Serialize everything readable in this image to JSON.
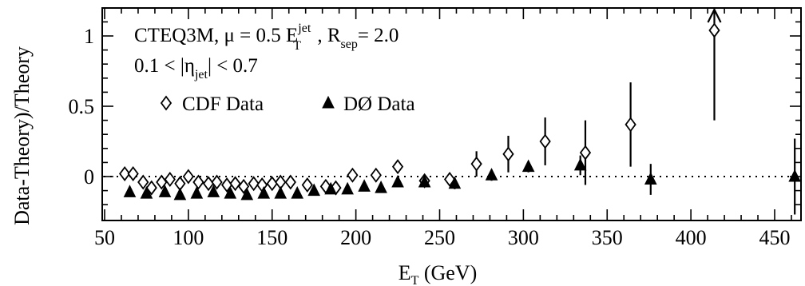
{
  "chart_data": {
    "type": "scatter",
    "title": "",
    "xlabel": {
      "main": "E",
      "sub": "T",
      "rest": " (GeV)"
    },
    "ylabel": "Data-Theory)/Theory",
    "xlim": [
      50,
      470
    ],
    "ylim": [
      -0.3,
      1.2
    ],
    "x_ticks": [
      "50",
      "100",
      "150",
      "200",
      "250",
      "300",
      "350",
      "400",
      "450"
    ],
    "x_tick_values": [
      50,
      100,
      150,
      200,
      250,
      300,
      350,
      400,
      450
    ],
    "y_ticks": [
      "0",
      "0.5",
      "1"
    ],
    "y_tick_values": [
      0,
      0.5,
      1
    ],
    "grid": false,
    "legend_position": "upper-left inside",
    "zero_line": 0,
    "annotations": {
      "line1": {
        "pdf": "CTEQ3M, ",
        "mu": "μ = 0.5 E",
        "mu_sup": "jet",
        "mu_sub": "T",
        "rsep": " , R",
        "rsep_sub": "sep",
        "rsep_val": "= 2.0"
      },
      "line2": {
        "pre": "0.1 < |η",
        "sub": "jet",
        "post": "| < 0.7"
      }
    },
    "series": [
      {
        "name": "CDF Data",
        "marker": "open-diamond",
        "color": "#000000",
        "points": [
          {
            "x": 62,
            "y": 0.02
          },
          {
            "x": 67,
            "y": 0.02
          },
          {
            "x": 73,
            "y": -0.04
          },
          {
            "x": 78,
            "y": -0.08
          },
          {
            "x": 84,
            "y": -0.04
          },
          {
            "x": 89,
            "y": -0.02
          },
          {
            "x": 95,
            "y": -0.05
          },
          {
            "x": 100,
            "y": 0.0
          },
          {
            "x": 106,
            "y": -0.04
          },
          {
            "x": 112,
            "y": -0.05
          },
          {
            "x": 117,
            "y": -0.04
          },
          {
            "x": 123,
            "y": -0.06
          },
          {
            "x": 128,
            "y": -0.05
          },
          {
            "x": 133,
            "y": -0.07
          },
          {
            "x": 139,
            "y": -0.05
          },
          {
            "x": 144,
            "y": -0.06
          },
          {
            "x": 150,
            "y": -0.05
          },
          {
            "x": 155,
            "y": -0.04
          },
          {
            "x": 161,
            "y": -0.04
          },
          {
            "x": 171,
            "y": -0.06
          },
          {
            "x": 182,
            "y": -0.07
          },
          {
            "x": 188,
            "y": -0.08
          },
          {
            "x": 198,
            "y": 0.01
          },
          {
            "x": 212,
            "y": 0.01
          },
          {
            "x": 225,
            "y": 0.07
          },
          {
            "x": 241,
            "y": -0.03
          },
          {
            "x": 256,
            "y": -0.02
          },
          {
            "x": 272,
            "y": 0.09,
            "err": 0.09
          },
          {
            "x": 291,
            "y": 0.16,
            "err": 0.13
          },
          {
            "x": 313,
            "y": 0.25,
            "err": 0.17
          },
          {
            "x": 337,
            "y": 0.17,
            "err": 0.23
          },
          {
            "x": 364,
            "y": 0.37,
            "err": 0.3
          },
          {
            "x": 414,
            "y": 1.04,
            "err_low": 0.64,
            "arrow_up": true
          }
        ]
      },
      {
        "name": "DØ Data",
        "marker": "filled-triangle",
        "color": "#000000",
        "points": [
          {
            "x": 65,
            "y": -0.11
          },
          {
            "x": 75,
            "y": -0.12
          },
          {
            "x": 86,
            "y": -0.11
          },
          {
            "x": 95,
            "y": -0.13
          },
          {
            "x": 105,
            "y": -0.12
          },
          {
            "x": 115,
            "y": -0.11
          },
          {
            "x": 125,
            "y": -0.12
          },
          {
            "x": 135,
            "y": -0.13
          },
          {
            "x": 145,
            "y": -0.12
          },
          {
            "x": 155,
            "y": -0.12
          },
          {
            "x": 165,
            "y": -0.12
          },
          {
            "x": 175,
            "y": -0.1
          },
          {
            "x": 185,
            "y": -0.09
          },
          {
            "x": 195,
            "y": -0.09
          },
          {
            "x": 205,
            "y": -0.07
          },
          {
            "x": 215,
            "y": -0.08
          },
          {
            "x": 225,
            "y": -0.04
          },
          {
            "x": 241,
            "y": -0.04,
            "err": 0.03
          },
          {
            "x": 259,
            "y": -0.05,
            "err": 0.04
          },
          {
            "x": 281,
            "y": 0.01,
            "err": 0.04
          },
          {
            "x": 303,
            "y": 0.07,
            "err": 0.04
          },
          {
            "x": 334,
            "y": 0.08,
            "err": 0.07
          },
          {
            "x": 376,
            "y": -0.02,
            "err": 0.11
          },
          {
            "x": 462,
            "y": 0.0,
            "err": 0.27
          }
        ]
      }
    ]
  }
}
